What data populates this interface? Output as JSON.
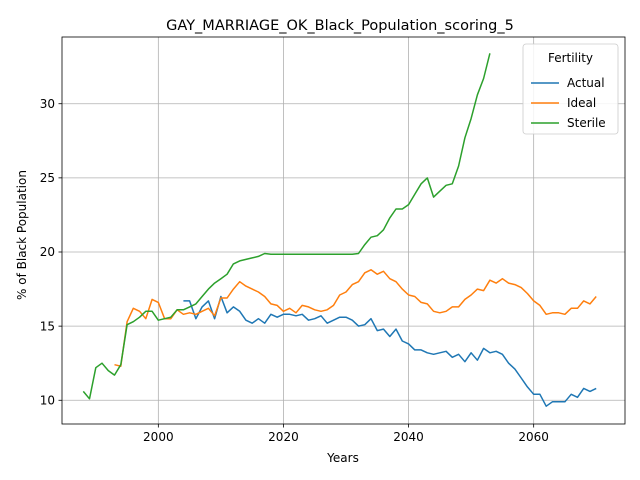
{
  "chart_data": {
    "type": "line",
    "title": "GAY_MARRIAGE_OK_Black_Population_scoring_5",
    "xlabel": "Years",
    "ylabel": "% of Black Population",
    "xlim": [
      1984.6,
      2074.6
    ],
    "ylim": [
      8.4,
      34.5
    ],
    "xticks": [
      2000,
      2020,
      2040,
      2060
    ],
    "yticks": [
      10,
      15,
      20,
      25,
      30
    ],
    "grid": true,
    "legend": {
      "title": "Fertility",
      "placement": "upper right"
    },
    "series": [
      {
        "name": "Actual",
        "color": "#1f77b4",
        "points": [
          [
            2004,
            16.7
          ],
          [
            2005,
            16.7
          ],
          [
            2006,
            15.5
          ],
          [
            2007,
            16.3
          ],
          [
            2008,
            16.7
          ],
          [
            2009,
            15.5
          ],
          [
            2010,
            17.0
          ],
          [
            2011,
            15.9
          ],
          [
            2012,
            16.3
          ],
          [
            2013,
            16.0
          ],
          [
            2014,
            15.4
          ],
          [
            2015,
            15.2
          ],
          [
            2016,
            15.5
          ],
          [
            2017,
            15.2
          ],
          [
            2018,
            15.8
          ],
          [
            2019,
            15.6
          ],
          [
            2020,
            15.8
          ],
          [
            2021,
            15.8
          ],
          [
            2022,
            15.7
          ],
          [
            2023,
            15.8
          ],
          [
            2024,
            15.4
          ],
          [
            2025,
            15.5
          ],
          [
            2026,
            15.7
          ],
          [
            2027,
            15.2
          ],
          [
            2028,
            15.4
          ],
          [
            2029,
            15.6
          ],
          [
            2030,
            15.6
          ],
          [
            2031,
            15.4
          ],
          [
            2032,
            15.0
          ],
          [
            2033,
            15.1
          ],
          [
            2034,
            15.5
          ],
          [
            2035,
            14.7
          ],
          [
            2036,
            14.8
          ],
          [
            2037,
            14.3
          ],
          [
            2038,
            14.8
          ],
          [
            2039,
            14.0
          ],
          [
            2040,
            13.8
          ],
          [
            2041,
            13.4
          ],
          [
            2042,
            13.4
          ],
          [
            2043,
            13.2
          ],
          [
            2044,
            13.1
          ],
          [
            2045,
            13.2
          ],
          [
            2046,
            13.3
          ],
          [
            2047,
            12.9
          ],
          [
            2048,
            13.1
          ],
          [
            2049,
            12.6
          ],
          [
            2050,
            13.2
          ],
          [
            2051,
            12.7
          ],
          [
            2052,
            13.5
          ],
          [
            2053,
            13.2
          ],
          [
            2054,
            13.3
          ],
          [
            2055,
            13.1
          ],
          [
            2056,
            12.5
          ],
          [
            2057,
            12.1
          ],
          [
            2058,
            11.5
          ],
          [
            2059,
            10.9
          ],
          [
            2060,
            10.4
          ],
          [
            2061,
            10.4
          ],
          [
            2062,
            9.6
          ],
          [
            2063,
            9.9
          ],
          [
            2064,
            9.9
          ],
          [
            2065,
            9.9
          ],
          [
            2066,
            10.4
          ],
          [
            2067,
            10.2
          ],
          [
            2068,
            10.8
          ],
          [
            2069,
            10.6
          ],
          [
            2070,
            10.8
          ]
        ]
      },
      {
        "name": "Ideal",
        "color": "#ff7f0e",
        "points": [
          [
            1993,
            12.4
          ],
          [
            1994,
            12.3
          ],
          [
            1995,
            15.3
          ],
          [
            1996,
            16.2
          ],
          [
            1997,
            16.0
          ],
          [
            1998,
            15.5
          ],
          [
            1999,
            16.8
          ],
          [
            2000,
            16.6
          ],
          [
            2001,
            15.5
          ],
          [
            2002,
            15.5
          ],
          [
            2003,
            16.1
          ],
          [
            2004,
            15.8
          ],
          [
            2005,
            15.9
          ],
          [
            2006,
            15.8
          ],
          [
            2007,
            16.0
          ],
          [
            2008,
            16.2
          ],
          [
            2009,
            15.7
          ],
          [
            2010,
            16.9
          ],
          [
            2011,
            16.9
          ],
          [
            2012,
            17.5
          ],
          [
            2013,
            18.0
          ],
          [
            2014,
            17.7
          ],
          [
            2015,
            17.5
          ],
          [
            2016,
            17.3
          ],
          [
            2017,
            17.0
          ],
          [
            2018,
            16.5
          ],
          [
            2019,
            16.4
          ],
          [
            2020,
            16.0
          ],
          [
            2021,
            16.2
          ],
          [
            2022,
            15.9
          ],
          [
            2023,
            16.4
          ],
          [
            2024,
            16.3
          ],
          [
            2025,
            16.1
          ],
          [
            2026,
            16.0
          ],
          [
            2027,
            16.1
          ],
          [
            2028,
            16.4
          ],
          [
            2029,
            17.1
          ],
          [
            2030,
            17.3
          ],
          [
            2031,
            17.8
          ],
          [
            2032,
            18.0
          ],
          [
            2033,
            18.6
          ],
          [
            2034,
            18.8
          ],
          [
            2035,
            18.5
          ],
          [
            2036,
            18.7
          ],
          [
            2037,
            18.2
          ],
          [
            2038,
            18.0
          ],
          [
            2039,
            17.5
          ],
          [
            2040,
            17.1
          ],
          [
            2041,
            17.0
          ],
          [
            2042,
            16.6
          ],
          [
            2043,
            16.5
          ],
          [
            2044,
            16.0
          ],
          [
            2045,
            15.9
          ],
          [
            2046,
            16.0
          ],
          [
            2047,
            16.3
          ],
          [
            2048,
            16.3
          ],
          [
            2049,
            16.8
          ],
          [
            2050,
            17.1
          ],
          [
            2051,
            17.5
          ],
          [
            2052,
            17.4
          ],
          [
            2053,
            18.1
          ],
          [
            2054,
            17.9
          ],
          [
            2055,
            18.2
          ],
          [
            2056,
            17.9
          ],
          [
            2057,
            17.8
          ],
          [
            2058,
            17.6
          ],
          [
            2059,
            17.2
          ],
          [
            2060,
            16.7
          ],
          [
            2061,
            16.4
          ],
          [
            2062,
            15.8
          ],
          [
            2063,
            15.9
          ],
          [
            2064,
            15.9
          ],
          [
            2065,
            15.8
          ],
          [
            2066,
            16.2
          ],
          [
            2067,
            16.2
          ],
          [
            2068,
            16.7
          ],
          [
            2069,
            16.5
          ],
          [
            2070,
            17.0
          ]
        ]
      },
      {
        "name": "Sterile",
        "color": "#2ca02c",
        "points": [
          [
            1988,
            10.6
          ],
          [
            1989,
            10.1
          ],
          [
            1990,
            12.2
          ],
          [
            1991,
            12.5
          ],
          [
            1992,
            12.0
          ],
          [
            1993,
            11.7
          ],
          [
            1994,
            12.4
          ],
          [
            1995,
            15.1
          ],
          [
            1996,
            15.3
          ],
          [
            1997,
            15.6
          ],
          [
            1998,
            16.0
          ],
          [
            1999,
            16.0
          ],
          [
            2000,
            15.4
          ],
          [
            2001,
            15.5
          ],
          [
            2002,
            15.6
          ],
          [
            2003,
            16.1
          ],
          [
            2004,
            16.1
          ],
          [
            2005,
            16.3
          ],
          [
            2006,
            16.5
          ],
          [
            2007,
            17.0
          ],
          [
            2008,
            17.5
          ],
          [
            2009,
            17.9
          ],
          [
            2010,
            18.2
          ],
          [
            2011,
            18.5
          ],
          [
            2012,
            19.2
          ],
          [
            2013,
            19.4
          ],
          [
            2014,
            19.5
          ],
          [
            2015,
            19.6
          ],
          [
            2016,
            19.7
          ],
          [
            2017,
            19.9
          ],
          [
            2018,
            19.85
          ],
          [
            2019,
            19.85
          ],
          [
            2020,
            19.85
          ],
          [
            2021,
            19.85
          ],
          [
            2022,
            19.85
          ],
          [
            2023,
            19.85
          ],
          [
            2024,
            19.85
          ],
          [
            2025,
            19.85
          ],
          [
            2026,
            19.85
          ],
          [
            2027,
            19.85
          ],
          [
            2028,
            19.85
          ],
          [
            2029,
            19.85
          ],
          [
            2030,
            19.85
          ],
          [
            2031,
            19.85
          ],
          [
            2032,
            19.9
          ],
          [
            2033,
            20.5
          ],
          [
            2034,
            21.0
          ],
          [
            2035,
            21.1
          ],
          [
            2036,
            21.5
          ],
          [
            2037,
            22.3
          ],
          [
            2038,
            22.9
          ],
          [
            2039,
            22.9
          ],
          [
            2040,
            23.2
          ],
          [
            2041,
            23.9
          ],
          [
            2042,
            24.6
          ],
          [
            2043,
            25.0
          ],
          [
            2044,
            23.7
          ],
          [
            2045,
            24.1
          ],
          [
            2046,
            24.5
          ],
          [
            2047,
            24.6
          ],
          [
            2048,
            25.8
          ],
          [
            2049,
            27.7
          ],
          [
            2050,
            29.0
          ],
          [
            2051,
            30.6
          ],
          [
            2052,
            31.7
          ],
          [
            2053,
            33.4
          ]
        ]
      }
    ]
  }
}
